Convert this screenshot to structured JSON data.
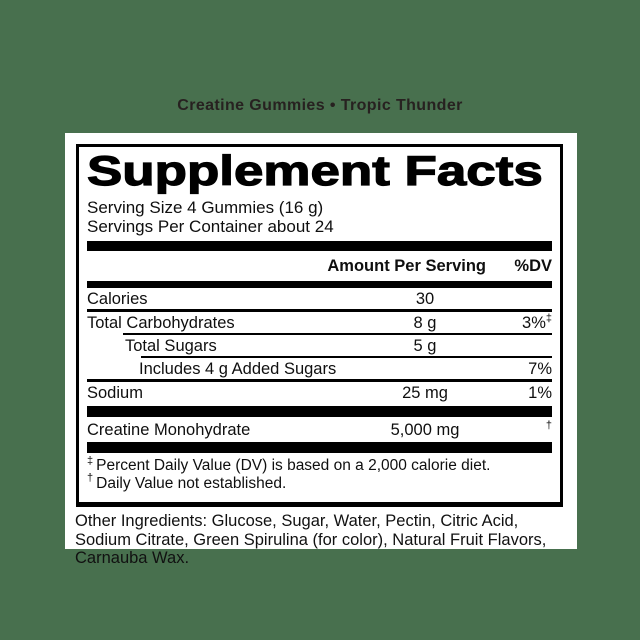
{
  "colors": {
    "background": "#48704e",
    "panel": "#ffffff",
    "ink": "#000000",
    "brand_ink": "#272120"
  },
  "header": {
    "title": "Creatine Gummies • Tropic Thunder"
  },
  "label": {
    "title": "Supplement Facts",
    "serving_size": "Serving Size 4 Gummies (16 g)",
    "servings_per_container": "Servings Per Container about 24",
    "columns": {
      "amount": "Amount Per Serving",
      "dv": "%DV"
    },
    "rows": [
      {
        "name": "Calories",
        "amount": "30",
        "dv": "",
        "dv_sup": ""
      },
      {
        "name": "Total Carbohydrates",
        "amount": "8 g",
        "dv": "3%",
        "dv_sup": "‡"
      },
      {
        "name": "Total Sugars",
        "amount": "5 g",
        "dv": "",
        "dv_sup": ""
      },
      {
        "name": "Includes 4 g Added Sugars",
        "amount": "",
        "dv": "7%",
        "dv_sup": ""
      },
      {
        "name": "Sodium",
        "amount": "25 mg",
        "dv": "1%",
        "dv_sup": ""
      },
      {
        "name": "Creatine Monohydrate",
        "amount": "5,000 mg",
        "dv": "",
        "dv_sup": "†"
      }
    ],
    "footnotes": [
      {
        "marker": "‡",
        "text": "Percent Daily Value (DV) is based on a 2,000 calorie diet."
      },
      {
        "marker": "†",
        "text": "Daily Value not established."
      }
    ]
  },
  "other_ingredients": "Other Ingredients: Glucose, Sugar, Water, Pectin, Citric Acid, Sodium Citrate, Green Spirulina (for color), Natural Fruit Flavors, Carnauba Wax."
}
